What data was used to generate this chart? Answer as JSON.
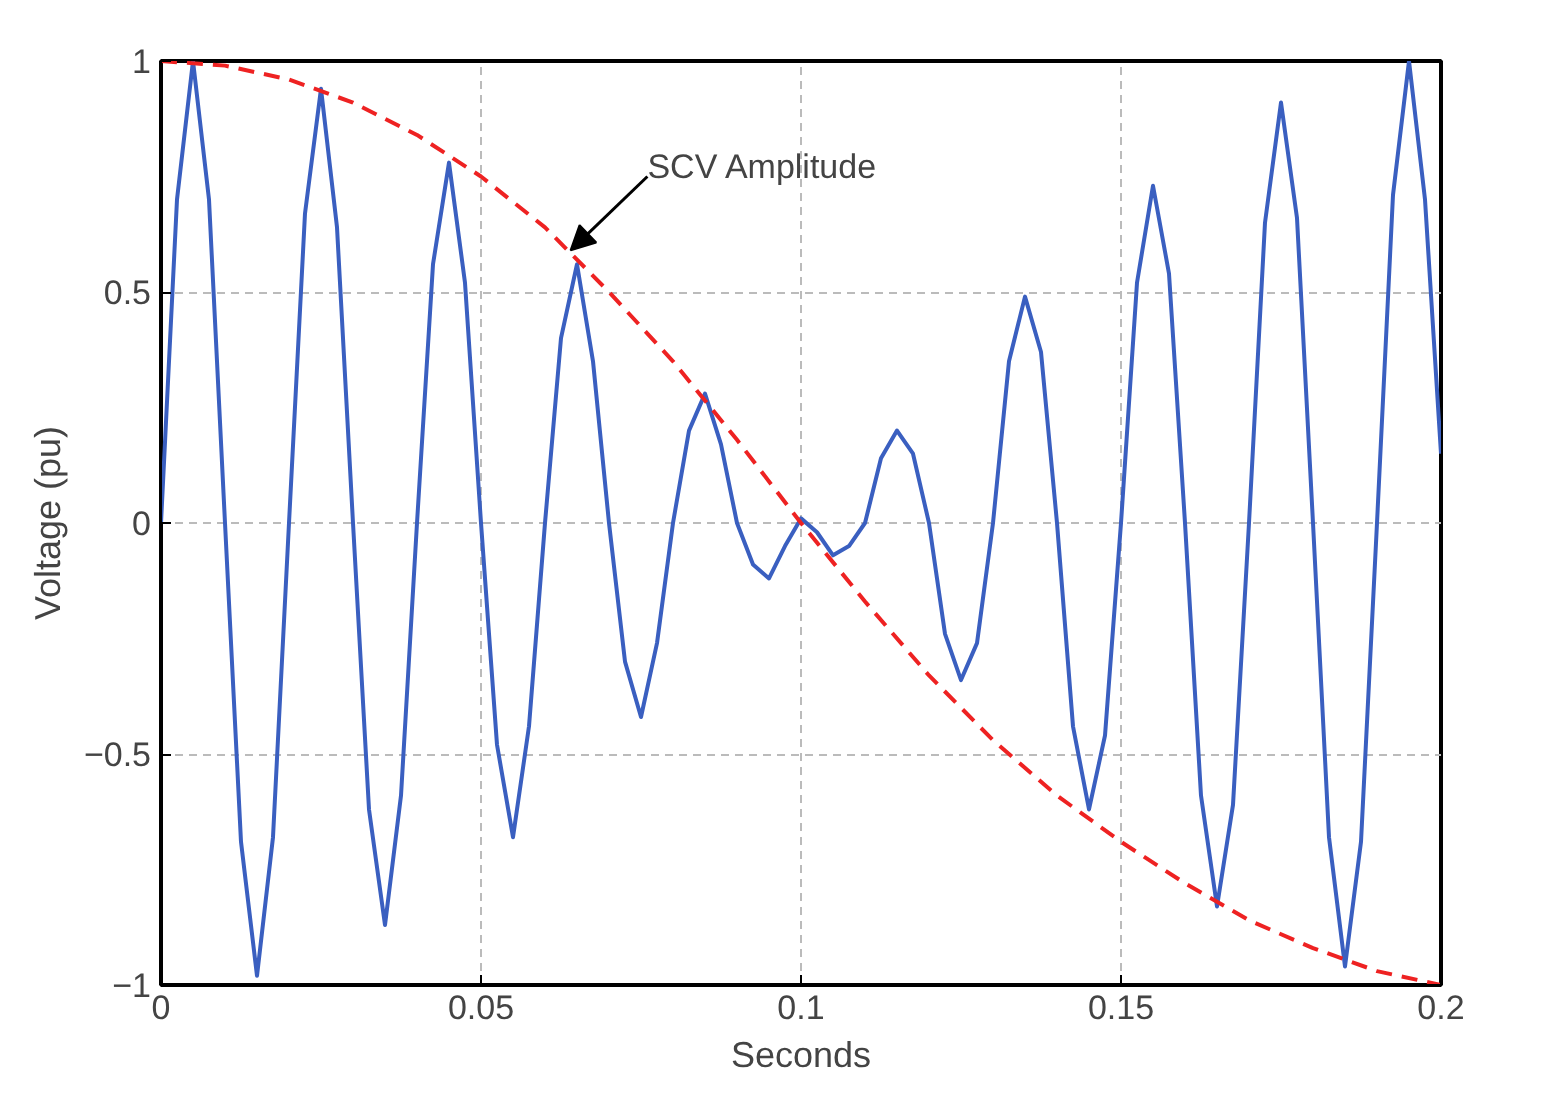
{
  "chart_data": {
    "type": "line",
    "xlabel": "Seconds",
    "ylabel": "Voltage (pu)",
    "xlim": [
      0,
      0.2
    ],
    "ylim": [
      -1,
      1
    ],
    "xticks": [
      0,
      0.05,
      0.1,
      0.15,
      0.2
    ],
    "yticks": [
      {
        "value": -1,
        "label": "−1"
      },
      {
        "value": -0.5,
        "label": "−0.5"
      },
      0,
      0.5,
      1
    ],
    "grid": true,
    "series": [
      {
        "color": "#3a5fc0",
        "line_style": "solid",
        "x": [
          0,
          0.0025,
          0.005,
          0.0075,
          0.01,
          0.0125,
          0.015,
          0.0175,
          0.02,
          0.0225,
          0.025,
          0.0275,
          0.03,
          0.0325,
          0.035,
          0.0375,
          0.04,
          0.0425,
          0.045,
          0.0475,
          0.05,
          0.0525,
          0.055,
          0.0575,
          0.06,
          0.0625,
          0.065,
          0.0675,
          0.07,
          0.0725,
          0.075,
          0.0775,
          0.08,
          0.0825,
          0.085,
          0.0875,
          0.09,
          0.0925,
          0.095,
          0.0975,
          0.1,
          0.1025,
          0.105,
          0.1075,
          0.11,
          0.1125,
          0.115,
          0.1175,
          0.12,
          0.1225,
          0.125,
          0.1275,
          0.13,
          0.1325,
          0.135,
          0.1375,
          0.14,
          0.1425,
          0.145,
          0.1475,
          0.15,
          0.1525,
          0.155,
          0.1575,
          0.16,
          0.1625,
          0.165,
          0.1675,
          0.17,
          0.1725,
          0.175,
          0.1775,
          0.18,
          0.1825,
          0.185,
          0.1875,
          0.19,
          0.1925,
          0.195,
          0.1975,
          0.2
        ],
        "values": [
          0,
          0.7,
          1,
          0.7,
          0,
          -0.69,
          -0.98,
          -0.68,
          0,
          0.67,
          0.94,
          0.64,
          0,
          -0.62,
          -0.87,
          -0.59,
          0,
          0.56,
          0.78,
          0.52,
          0,
          -0.48,
          -0.68,
          -0.44,
          0,
          0.4,
          0.56,
          0.35,
          0,
          -0.3,
          -0.42,
          -0.26,
          0,
          0.2,
          0.28,
          0.17,
          0,
          -0.09,
          -0.12,
          -0.05,
          0.01,
          -0.02,
          -0.07,
          -0.05,
          0,
          0.14,
          0.2,
          0.15,
          0,
          -0.24,
          -0.34,
          -0.26,
          0,
          0.35,
          0.49,
          0.37,
          0,
          -0.44,
          -0.62,
          -0.46,
          0,
          0.52,
          0.73,
          0.54,
          0,
          -0.59,
          -0.83,
          -0.61,
          0,
          0.65,
          0.91,
          0.66,
          0,
          -0.68,
          -0.96,
          -0.69,
          0,
          0.71,
          1,
          0.7,
          0.15
        ]
      },
      {
        "color": "#ee2222",
        "line_style": "dashed",
        "x": [
          0,
          0.01,
          0.02,
          0.03,
          0.04,
          0.05,
          0.06,
          0.07,
          0.08,
          0.09,
          0.1,
          0.11,
          0.12,
          0.13,
          0.14,
          0.15,
          0.16,
          0.17,
          0.18,
          0.19,
          0.2
        ],
        "values": [
          1,
          0.99,
          0.96,
          0.91,
          0.84,
          0.75,
          0.64,
          0.5,
          0.35,
          0.18,
          0,
          -0.17,
          -0.33,
          -0.47,
          -0.59,
          -0.69,
          -0.78,
          -0.86,
          -0.92,
          -0.97,
          -1
        ]
      }
    ],
    "annotations": [
      {
        "text": "SCV Amplitude",
        "x": 0.064,
        "y": 0.59
      }
    ]
  }
}
